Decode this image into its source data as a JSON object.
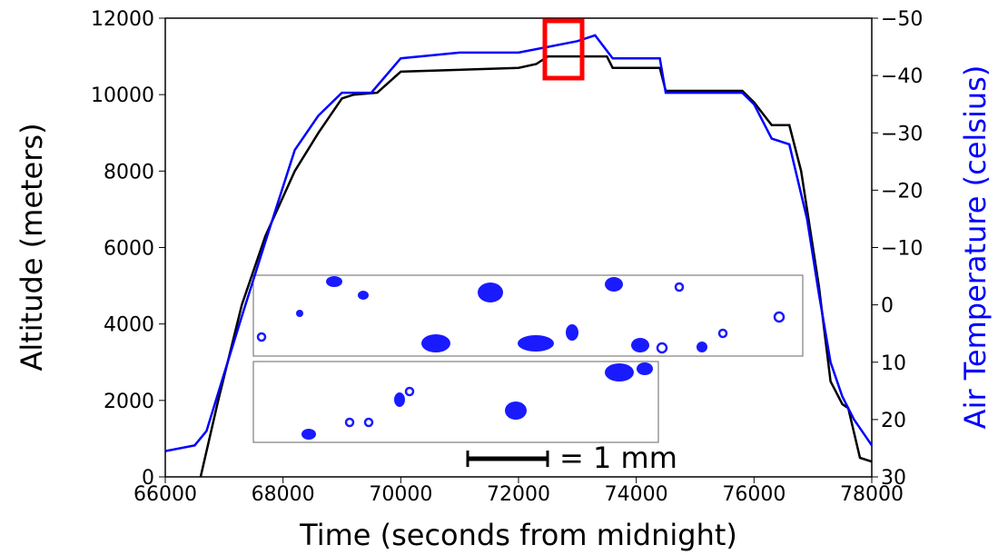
{
  "chart_data": {
    "type": "line",
    "xlabel": "Time (seconds from midnight)",
    "ylabel": "Altitude (meters)",
    "y2label": "Air Temperature (celsius)",
    "annotation": "= 1 mm",
    "xlim": [
      66000,
      78000
    ],
    "xticks": [
      66000,
      68000,
      70000,
      72000,
      74000,
      76000,
      78000
    ],
    "ylim": [
      0,
      12000
    ],
    "yticks": [
      0,
      2000,
      4000,
      6000,
      8000,
      10000,
      12000
    ],
    "y2lim": [
      30,
      -50
    ],
    "y2ticks": [
      {
        "value": -50,
        "label": "−50"
      },
      {
        "value": -40,
        "label": "−40"
      },
      {
        "value": -30,
        "label": "−30"
      },
      {
        "value": -20,
        "label": "−20"
      },
      {
        "value": -10,
        "label": "−10"
      },
      0,
      10,
      20,
      30
    ],
    "series": [
      {
        "name": "Altitude",
        "color": "#000000",
        "x": [
          66600,
          66900,
          67300,
          67700,
          68200,
          68600,
          69000,
          69200,
          69600,
          70000,
          72000,
          72300,
          72500,
          73500,
          73600,
          74400,
          74500,
          75800,
          76000,
          76300,
          76600,
          76800,
          77100,
          77300,
          77500,
          77600,
          77800,
          78000
        ],
        "values": [
          0,
          2000,
          4500,
          6300,
          8000,
          9000,
          9900,
          10000,
          10050,
          10600,
          10700,
          10800,
          11000,
          11000,
          10700,
          10700,
          10100,
          10100,
          9800,
          9200,
          9200,
          8000,
          5000,
          2500,
          1900,
          1800,
          500,
          400
        ]
      },
      {
        "name": "Air Temperature",
        "color": "#0000ff",
        "axis": "y2",
        "x": [
          66000,
          66500,
          66700,
          67000,
          67300,
          67700,
          68200,
          68600,
          69000,
          69500,
          70000,
          71000,
          72000,
          72500,
          73000,
          73300,
          73600,
          74400,
          74500,
          75800,
          76000,
          76300,
          76600,
          76900,
          77100,
          77300,
          77500,
          77700,
          77900,
          78000
        ],
        "values": [
          25.5,
          24.5,
          22,
          12,
          2,
          -11,
          -27,
          -33,
          -37,
          -37,
          -43,
          -44,
          -44,
          -45,
          -46,
          -47,
          -43,
          -43,
          -37,
          -37,
          -35,
          -29,
          -28,
          -15,
          -2,
          10,
          16,
          20,
          23,
          24.5
        ]
      }
    ]
  }
}
